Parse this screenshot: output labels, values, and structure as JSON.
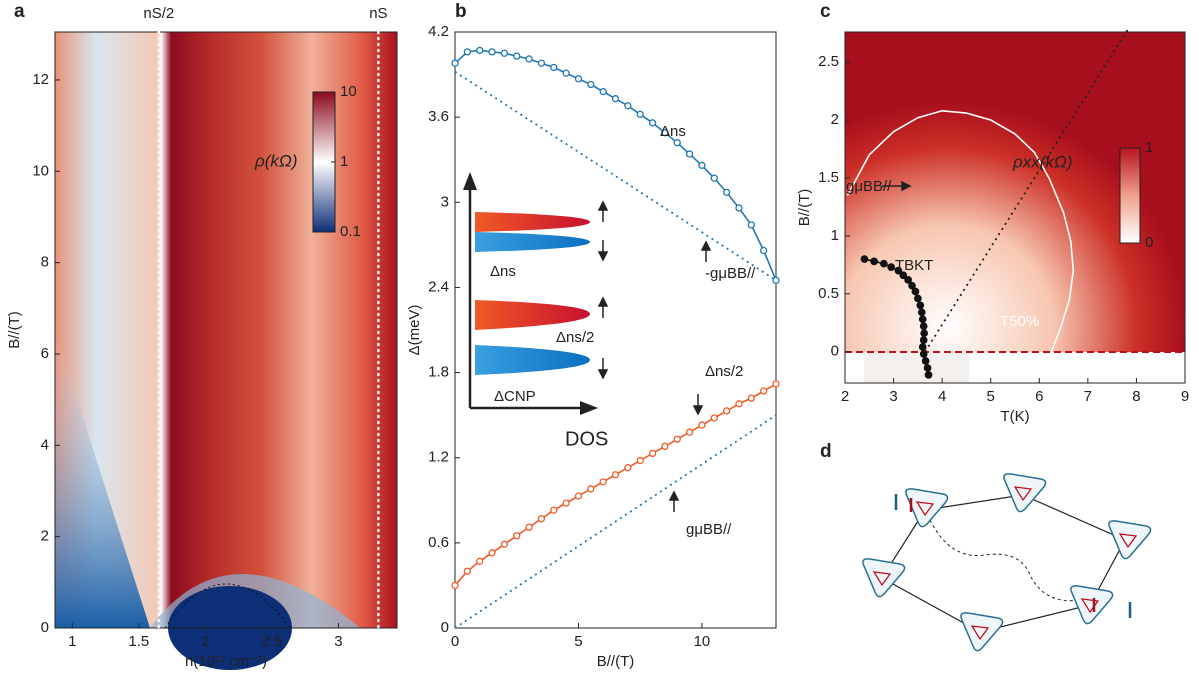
{
  "chart_data": [
    {
      "type": "heatmap",
      "panel": "a",
      "xlabel": "n(10¹² cm⁻²)",
      "ylabel": "B//(T)",
      "xlim": [
        0.87,
        3.44
      ],
      "xticks": [
        1,
        1.5,
        2,
        2.5,
        3
      ],
      "ylim": [
        0,
        13.05
      ],
      "yticks": [
        0,
        2,
        4,
        6,
        8,
        10,
        12
      ],
      "markers": [
        {
          "label": "nS/2",
          "x": 1.65
        },
        {
          "label": "nS",
          "x": 3.3
        }
      ],
      "colorbar": {
        "label": "ρ(kΩ)",
        "scale": "log",
        "lim": [
          0.1,
          10
        ],
        "ticks": [
          0.1,
          1,
          10
        ],
        "colors": [
          "#0d2f78",
          "#ffffff",
          "#8c0a1e"
        ]
      }
    },
    {
      "type": "line",
      "panel": "b",
      "xlabel": "B//(T)",
      "ylabel": "Δ(meV)",
      "xlim": [
        0,
        13
      ],
      "xticks": [
        0,
        5,
        10
      ],
      "ylim": [
        0,
        4.2
      ],
      "yticks": [
        0,
        0.6,
        1.2,
        1.8,
        2.4,
        3,
        3.6,
        4.2
      ],
      "series": [
        {
          "color": "#1f77b4",
          "marker": "circle",
          "x": [
            0,
            0.5,
            1,
            1.5,
            2,
            2.5,
            3,
            3.5,
            4,
            4.5,
            5,
            5.5,
            6,
            6.5,
            7,
            7.5,
            8,
            8.5,
            9,
            9.5,
            10,
            10.5,
            11,
            11.5,
            12,
            12.5,
            13
          ],
          "values": [
            3.98,
            4.06,
            4.07,
            4.06,
            4.05,
            4.03,
            4.01,
            3.98,
            3.95,
            3.91,
            3.87,
            3.83,
            3.78,
            3.73,
            3.68,
            3.62,
            3.56,
            3.49,
            3.42,
            3.34,
            3.26,
            3.17,
            3.07,
            2.96,
            2.84,
            2.66,
            2.45
          ]
        },
        {
          "color": "#f05a28",
          "marker": "circle",
          "x": [
            0,
            0.5,
            1,
            1.5,
            2,
            2.5,
            3,
            3.5,
            4,
            4.5,
            5,
            5.5,
            6,
            6.5,
            7,
            7.5,
            8,
            8.5,
            9,
            9.5,
            10,
            10.5,
            11,
            11.5,
            12,
            12.5,
            13
          ],
          "values": [
            0.3,
            0.4,
            0.47,
            0.53,
            0.59,
            0.65,
            0.71,
            0.77,
            0.83,
            0.88,
            0.93,
            0.98,
            1.03,
            1.08,
            1.13,
            1.18,
            1.23,
            1.28,
            1.33,
            1.38,
            1.43,
            1.48,
            1.53,
            1.58,
            1.62,
            1.67,
            1.72
          ]
        },
        {
          "color": "#1f77b4",
          "style": "dotted",
          "x": [
            0,
            13
          ],
          "values": [
            3.92,
            2.45
          ]
        },
        {
          "color": "#1f77b4",
          "style": "dotted",
          "x": [
            0,
            13
          ],
          "values": [
            0,
            1.5
          ]
        }
      ],
      "annotations": [
        "Δns",
        "-gμBB//",
        "Δns/2",
        "gμBB//",
        "DOS",
        "Δns",
        "Δns/2",
        "ΔCNP"
      ]
    },
    {
      "type": "heatmap",
      "panel": "c",
      "xlabel": "T(K)",
      "ylabel": "B//(T)",
      "xlim": [
        2,
        9
      ],
      "xticks": [
        2,
        3,
        4,
        5,
        6,
        7,
        8,
        9
      ],
      "ylim": [
        -0.27,
        2.76
      ],
      "yticks": [
        0,
        0.5,
        1,
        1.5,
        2,
        2.5
      ],
      "series": [
        {
          "color": "#111111",
          "marker": "circle",
          "x": [
            2.4,
            2.6,
            2.8,
            2.95,
            3.1,
            3.2,
            3.3,
            3.38,
            3.45,
            3.5,
            3.55,
            3.58,
            3.6,
            3.62,
            3.63,
            3.62,
            3.6,
            3.62,
            3.66,
            3.7,
            3.72
          ],
          "values": [
            0.8,
            0.78,
            0.76,
            0.73,
            0.7,
            0.66,
            0.62,
            0.57,
            0.52,
            0.46,
            0.4,
            0.34,
            0.28,
            0.22,
            0.16,
            0.1,
            0.04,
            -0.02,
            -0.08,
            -0.14,
            -0.2
          ]
        },
        {
          "color": "#ffffff",
          "x": [
            2.05,
            2.5,
            3,
            3.5,
            4,
            4.5,
            5,
            5.5,
            5.9,
            6.2,
            6.5,
            6.65,
            6.7,
            6.62,
            6.45,
            6.25
          ],
          "values": [
            1.35,
            1.7,
            1.9,
            2.02,
            2.08,
            2.06,
            2.0,
            1.88,
            1.72,
            1.5,
            1.2,
            0.95,
            0.7,
            0.45,
            0.22,
            0
          ]
        },
        {
          "color": "#222222",
          "style": "dotted",
          "x": [
            3.65,
            7.85
          ],
          "values": [
            0,
            2.8
          ]
        }
      ],
      "annotations": [
        "gμBB//",
        "TBKT",
        "T50%"
      ],
      "colorbar": {
        "label": "ρxx(kΩ)",
        "scale": "linear",
        "lim": [
          0,
          1
        ],
        "ticks": [
          0,
          1
        ],
        "colors": [
          "#ffffff",
          "#f0a08a",
          "#b8141e"
        ]
      }
    }
  ],
  "diagram": {
    "panel": "d"
  }
}
